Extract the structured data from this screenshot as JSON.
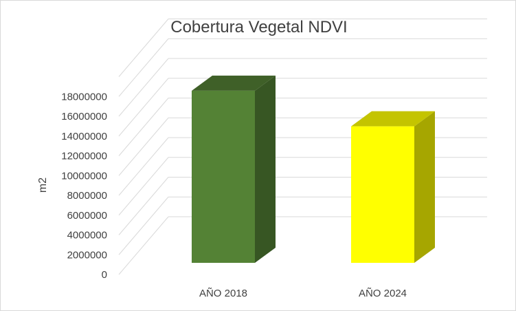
{
  "chart_data": {
    "type": "bar",
    "title": "Cobertura Vegetal NDVI",
    "xlabel": "",
    "ylabel": "m2",
    "ylim": [
      0,
      18000000
    ],
    "yticks": [
      0,
      2000000,
      4000000,
      6000000,
      8000000,
      10000000,
      12000000,
      14000000,
      16000000,
      18000000
    ],
    "ytick_labels": [
      "0",
      "2000000",
      "4000000",
      "6000000",
      "8000000",
      "10000000",
      "12000000",
      "14000000",
      "16000000",
      "18000000"
    ],
    "categories": [
      "AÑO 2018",
      "AÑO 2024"
    ],
    "values": [
      17400000,
      13800000
    ],
    "colors": [
      {
        "front": "#548235",
        "side": "#375623",
        "top": "#3f6028"
      },
      {
        "front": "#ffff00",
        "side": "#a6a600",
        "top": "#c4c400"
      }
    ],
    "grid": true,
    "legend": "none",
    "style": "3d-column"
  }
}
